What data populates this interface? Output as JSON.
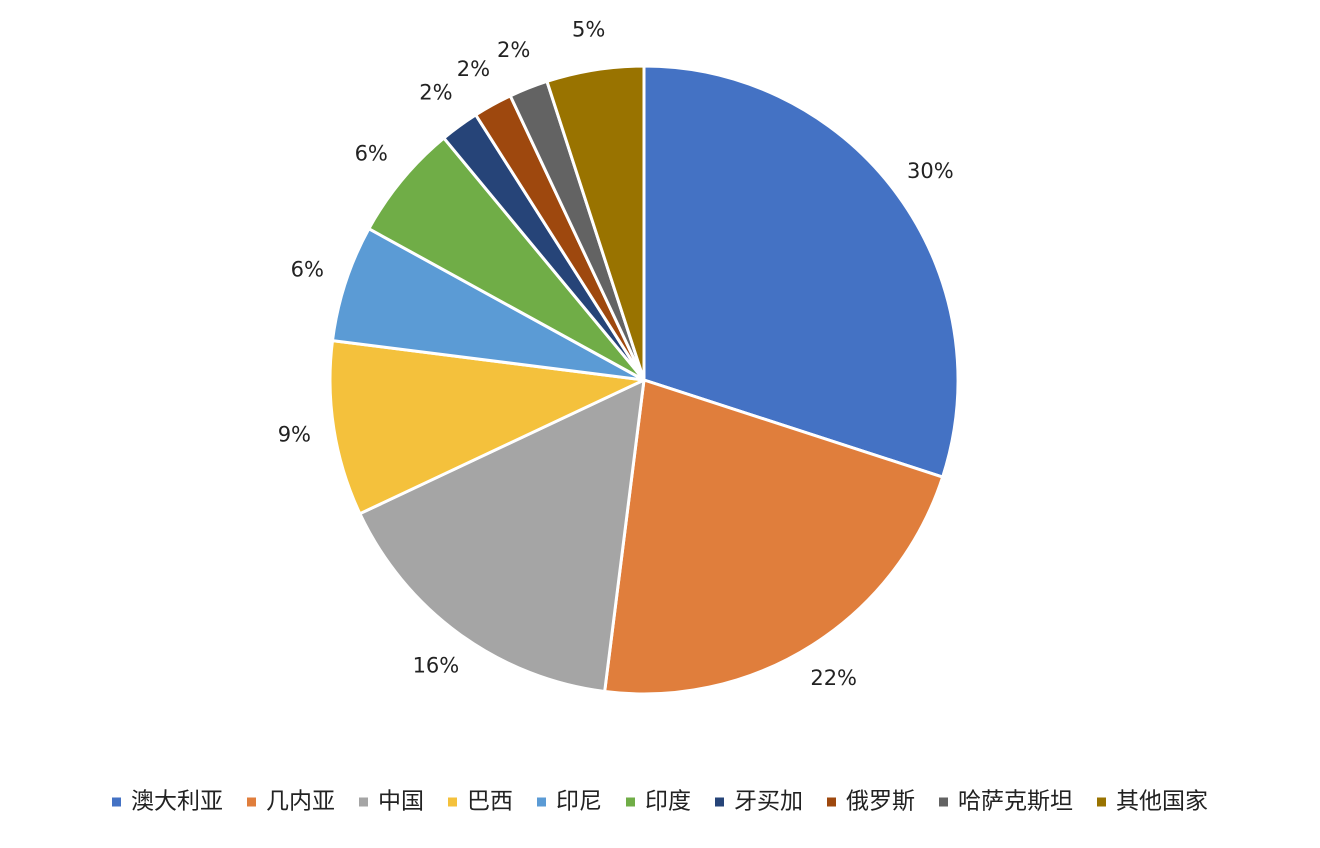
{
  "chart_data": {
    "type": "pie",
    "title": "",
    "legend_position": "bottom",
    "start_angle_deg": 0,
    "direction": "clockwise",
    "slices": [
      {
        "label": "澳大利亚",
        "value": 30,
        "display": "30%",
        "color": "#4472C4"
      },
      {
        "label": "几内亚",
        "value": 22,
        "display": "22%",
        "color": "#E07E3C"
      },
      {
        "label": "中国",
        "value": 16,
        "display": "16%",
        "color": "#A5A5A5"
      },
      {
        "label": "巴西",
        "value": 9,
        "display": "9%",
        "color": "#F4C13C"
      },
      {
        "label": "印尼",
        "value": 6,
        "display": "6%",
        "color": "#5B9BD5"
      },
      {
        "label": "印度",
        "value": 6,
        "display": "6%",
        "color": "#70AD47"
      },
      {
        "label": "牙买加",
        "value": 2,
        "display": "2%",
        "color": "#264478"
      },
      {
        "label": "俄罗斯",
        "value": 2,
        "display": "2%",
        "color": "#9E480E"
      },
      {
        "label": "哈萨克斯坦",
        "value": 2,
        "display": "2%",
        "color": "#636363"
      },
      {
        "label": "其他国家",
        "value": 5,
        "display": "5%",
        "color": "#997300"
      }
    ]
  }
}
